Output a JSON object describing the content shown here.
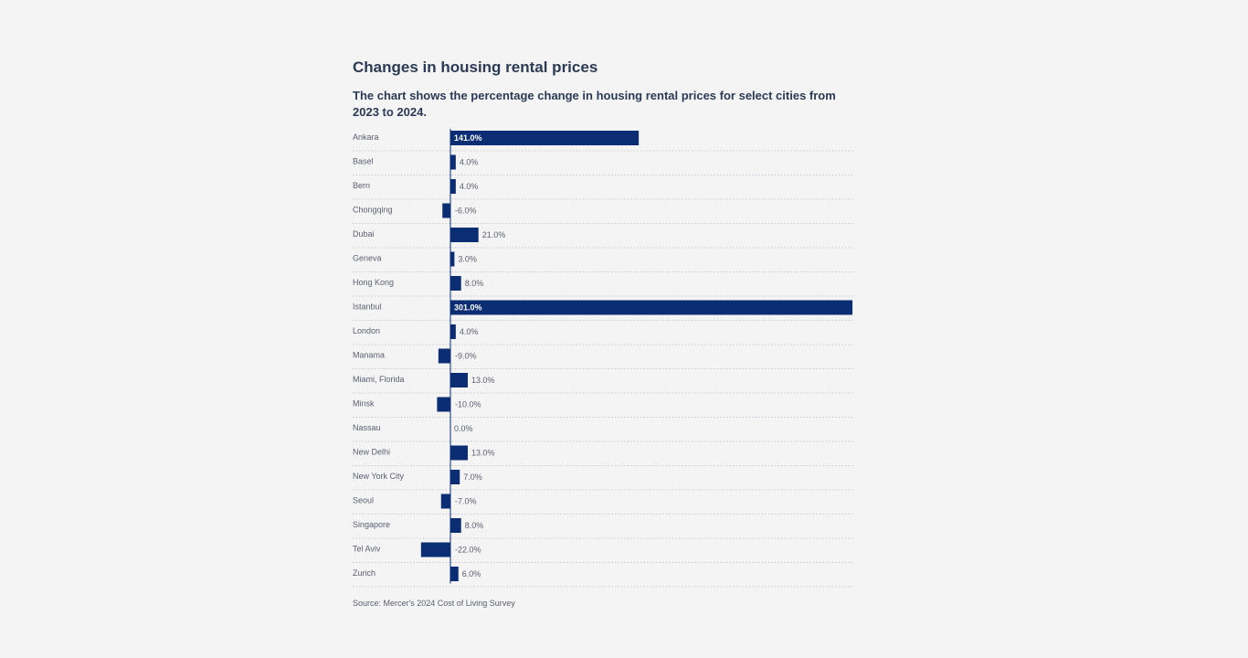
{
  "chart_data": {
    "type": "bar",
    "orientation": "horizontal",
    "title": "Changes in housing rental prices",
    "subtitle": "The chart shows the percentage change in housing rental prices for select cities from 2023 to 2024.",
    "source": "Source: Mercer's 2024 Cost of Living Survey",
    "categories": [
      "Ankara",
      "Basel",
      "Bern",
      "Chongqing",
      "Dubai",
      "Geneva",
      "Hong Kong",
      "Istanbul",
      "London",
      "Manama",
      "Miami, Florida",
      "Minsk",
      "Nassau",
      "New Delhi",
      "New York City",
      "Seoul",
      "Singapore",
      "Tel Aviv",
      "Zurich"
    ],
    "values": [
      141.0,
      4.0,
      4.0,
      -6.0,
      21.0,
      3.0,
      8.0,
      301.0,
      4.0,
      -9.0,
      13.0,
      -10.0,
      0.0,
      13.0,
      7.0,
      -7.0,
      8.0,
      -22.0,
      6.0
    ],
    "data_labels": [
      "141.0%",
      "4.0%",
      "4.0%",
      "-6.0%",
      "21.0%",
      "3.0%",
      "8.0%",
      "301.0%",
      "4.0%",
      "-9.0%",
      "13.0%",
      "-10.0%",
      "0.0%",
      "13.0%",
      "7.0%",
      "-7.0%",
      "8.0%",
      "-22.0%",
      "6.0%"
    ],
    "xlim": [
      -22,
      301
    ],
    "grid": "dotted row separators",
    "bar_color": "#0b2d74",
    "inside_label_color": "#ffffff",
    "label_color": "#5a6070"
  }
}
